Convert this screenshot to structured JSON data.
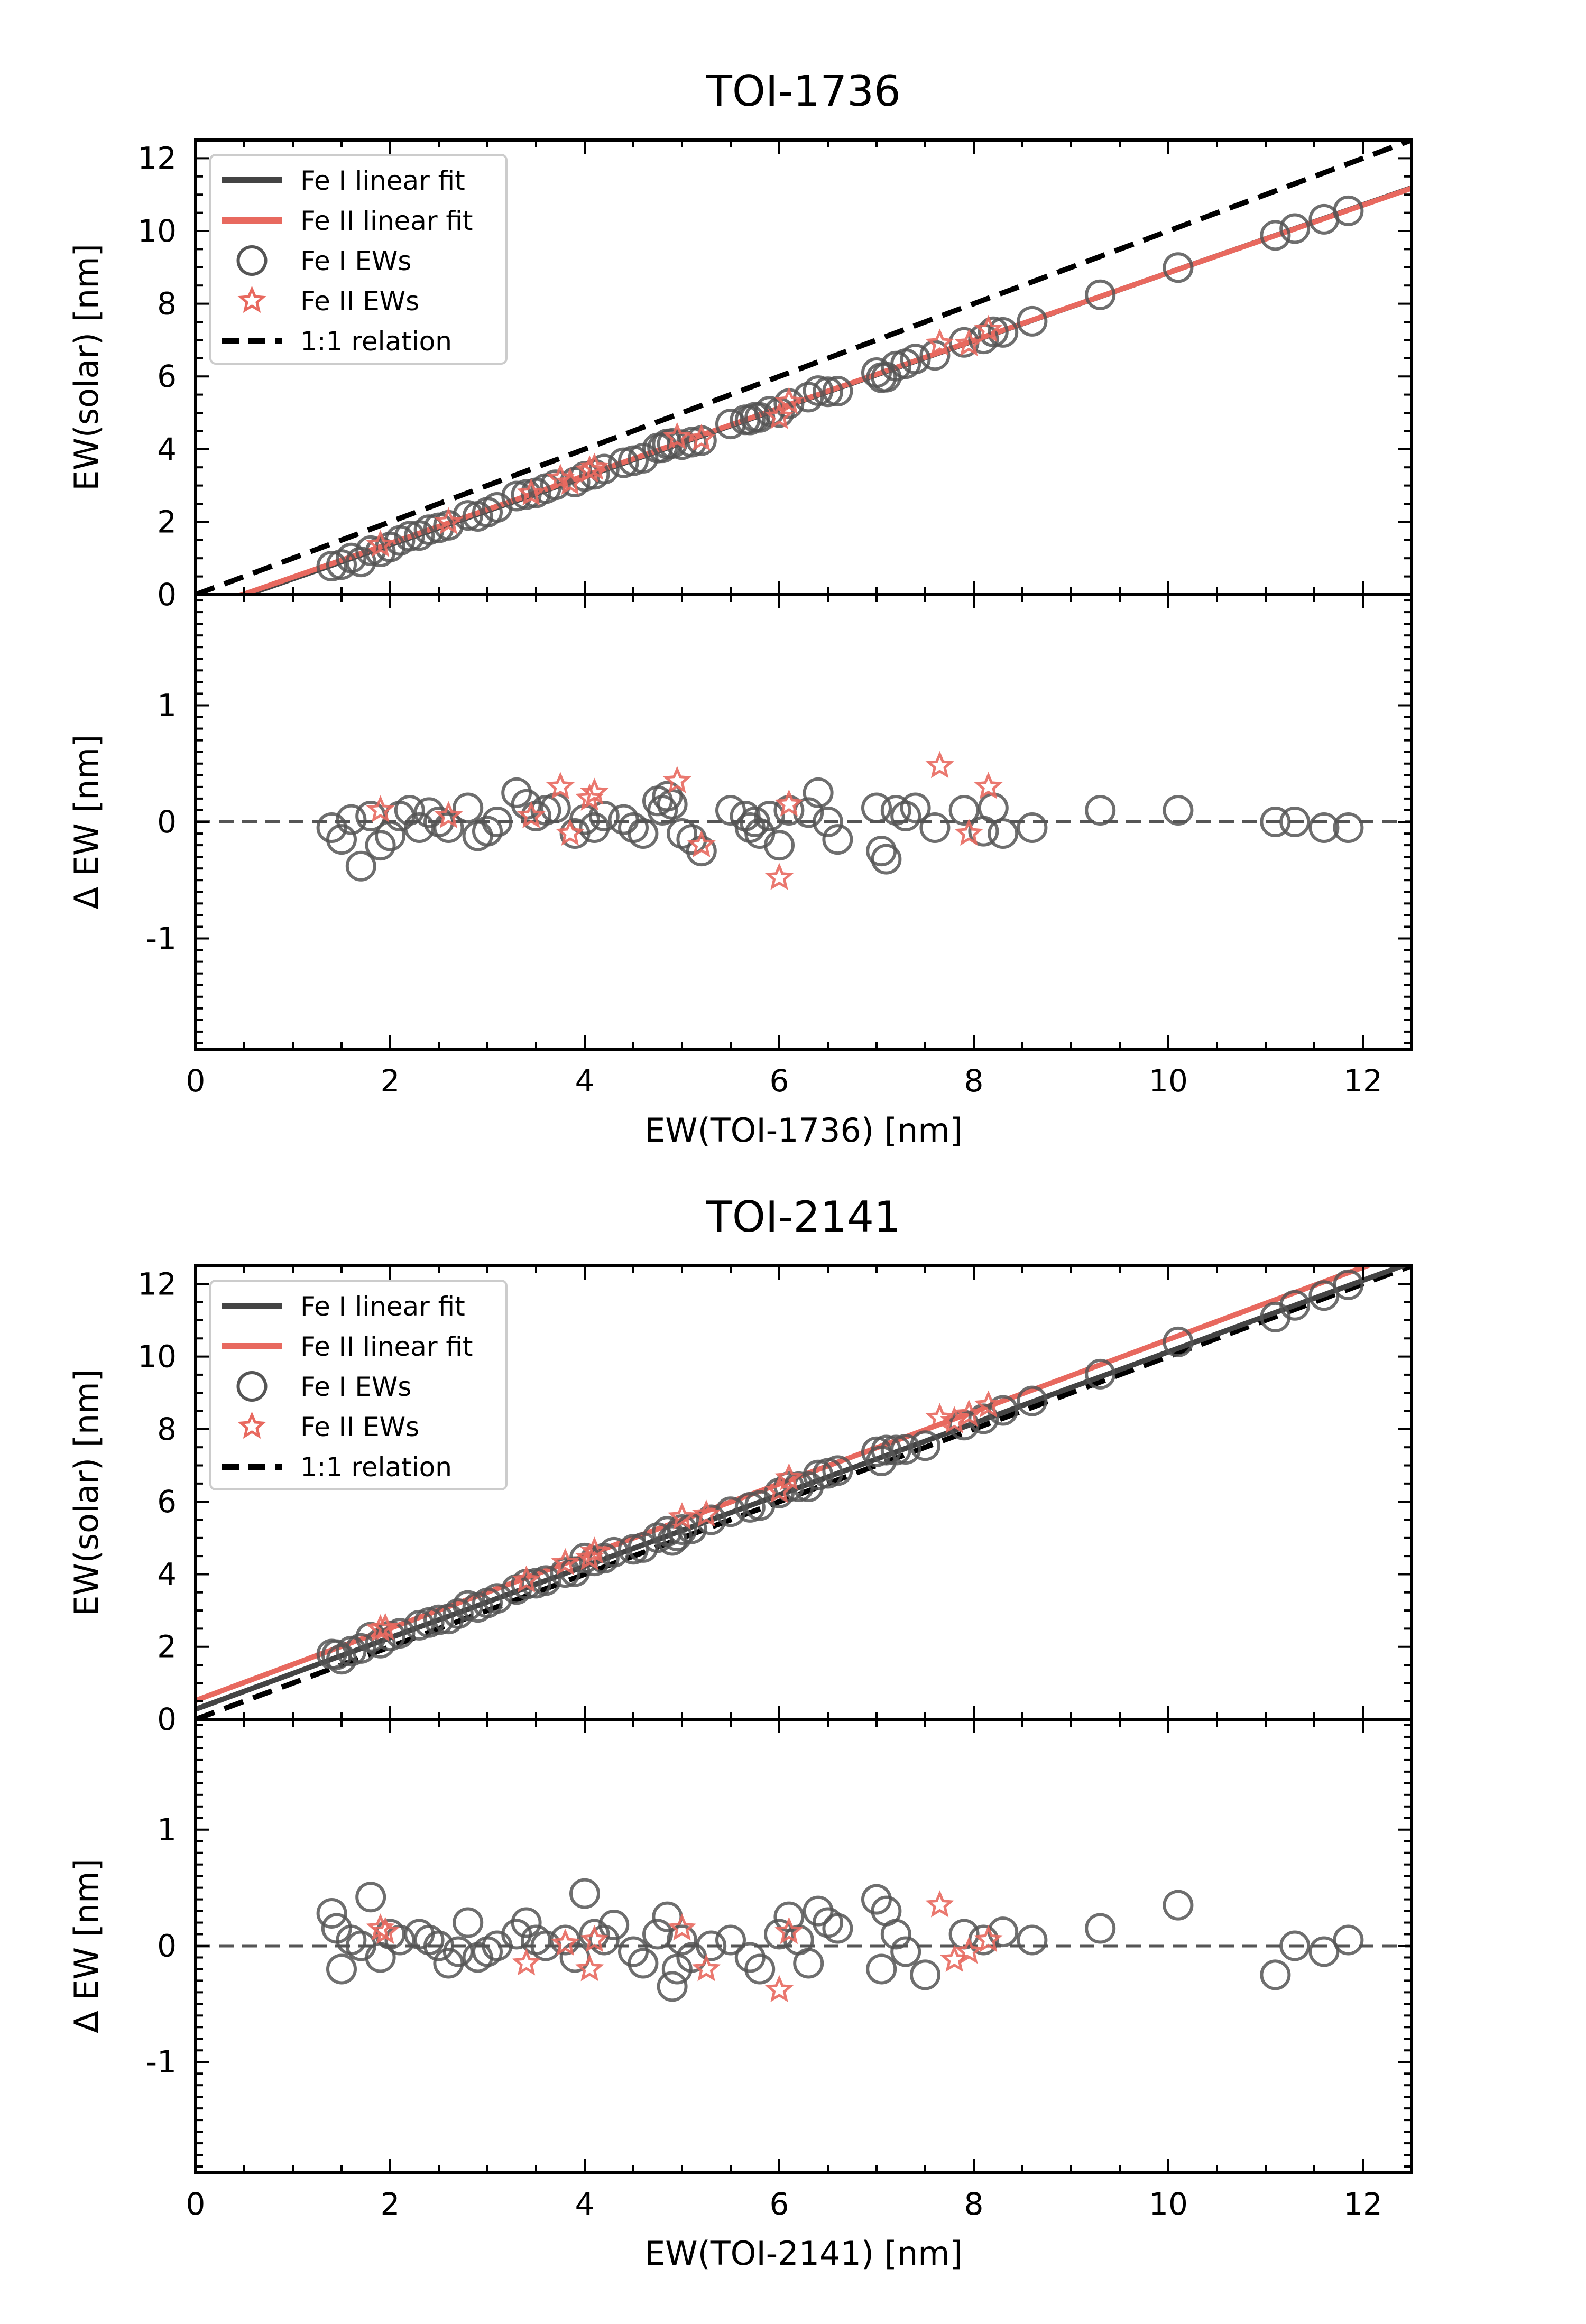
{
  "chart_data": [
    {
      "type": "scatter",
      "title": "TOI-1736",
      "xlabel": "EW(TOI-1736) [nm]",
      "ylabel_top": "EW(solar) [nm]",
      "ylabel_bottom": "Δ EW [nm]",
      "xlim": [
        0,
        12.5
      ],
      "ylim_top": [
        0,
        12.5
      ],
      "ylim_bottom": [
        -1.95,
        1.95
      ],
      "xticks": [
        "0",
        "2",
        "4",
        "6",
        "8",
        "10",
        "12"
      ],
      "yticks_top": [
        "0",
        "2",
        "4",
        "6",
        "8",
        "10",
        "12"
      ],
      "yticks_bottom": [
        "-1",
        "0",
        "1"
      ],
      "legend": {
        "fe1_fit": "Fe I linear fit",
        "fe2_fit": "Fe II linear fit",
        "fe1_pts": "Fe I EWs",
        "fe2_pts": "Fe II EWs",
        "one_to_one": "1:1 relation"
      },
      "legend_position": "upper-left",
      "fe1_fit": {
        "slope": 0.935,
        "intercept": -0.5
      },
      "fe2_fit": {
        "slope": 0.93,
        "intercept": -0.45
      },
      "fe1_x": [
        1.4,
        1.5,
        1.6,
        1.7,
        1.8,
        1.9,
        2.0,
        2.1,
        2.2,
        2.3,
        2.4,
        2.5,
        2.6,
        2.8,
        2.9,
        3.0,
        3.1,
        3.3,
        3.4,
        3.5,
        3.6,
        3.7,
        3.9,
        4.0,
        4.1,
        4.2,
        4.4,
        4.5,
        4.6,
        4.75,
        4.8,
        4.85,
        4.9,
        5.0,
        5.1,
        5.2,
        5.5,
        5.65,
        5.7,
        5.75,
        5.8,
        5.9,
        6.0,
        6.1,
        6.3,
        6.4,
        6.5,
        6.6,
        7.0,
        7.05,
        7.1,
        7.2,
        7.3,
        7.4,
        7.6,
        7.9,
        8.1,
        8.2,
        8.3,
        8.6,
        9.3,
        10.1,
        11.1,
        11.3,
        11.6,
        11.85
      ],
      "fe1_d": [
        -0.05,
        -0.15,
        0.02,
        -0.38,
        0.05,
        -0.2,
        -0.12,
        0.05,
        0.1,
        -0.05,
        0.08,
        0.0,
        -0.05,
        0.12,
        -0.12,
        -0.08,
        0.0,
        0.25,
        0.15,
        0.05,
        0.1,
        0.12,
        -0.1,
        0.02,
        -0.05,
        0.05,
        0.02,
        -0.05,
        -0.1,
        0.18,
        0.1,
        0.22,
        0.15,
        -0.1,
        -0.15,
        -0.25,
        0.1,
        0.05,
        -0.05,
        0.0,
        -0.1,
        0.05,
        -0.2,
        0.1,
        0.08,
        0.25,
        0.0,
        -0.15,
        0.12,
        -0.25,
        -0.32,
        0.1,
        0.05,
        0.12,
        -0.05,
        0.1,
        -0.08,
        0.12,
        -0.1,
        -0.05,
        0.1,
        0.1,
        0.0,
        0.0,
        -0.05,
        -0.05
      ],
      "fe2_x": [
        1.9,
        2.6,
        3.45,
        3.75,
        3.85,
        4.05,
        4.1,
        4.95,
        5.2,
        6.0,
        6.1,
        7.65,
        7.95,
        8.15
      ],
      "fe2_d": [
        0.1,
        0.05,
        0.05,
        0.3,
        -0.1,
        0.2,
        0.25,
        0.35,
        -0.2,
        -0.48,
        0.15,
        0.48,
        -0.1,
        0.3
      ]
    },
    {
      "type": "scatter",
      "title": "TOI-2141",
      "xlabel": "EW(TOI-2141) [nm]",
      "ylabel_top": "EW(solar) [nm]",
      "ylabel_bottom": "Δ EW [nm]",
      "xlim": [
        0,
        12.5
      ],
      "ylim_top": [
        0,
        12.5
      ],
      "ylim_bottom": [
        -1.95,
        1.95
      ],
      "xticks": [
        "0",
        "2",
        "4",
        "6",
        "8",
        "10",
        "12"
      ],
      "yticks_top": [
        "0",
        "2",
        "4",
        "6",
        "8",
        "10",
        "12"
      ],
      "yticks_bottom": [
        "-1",
        "0",
        "1"
      ],
      "legend": {
        "fe1_fit": "Fe I linear fit",
        "fe2_fit": "Fe II linear fit",
        "fe1_pts": "Fe I EWs",
        "fe2_pts": "Fe II EWs",
        "one_to_one": "1:1 relation"
      },
      "legend_position": "upper-left",
      "fe1_fit": {
        "slope": 0.985,
        "intercept": 0.28
      },
      "fe2_fit": {
        "slope": 0.995,
        "intercept": 0.52
      },
      "fe1_x": [
        1.4,
        1.45,
        1.5,
        1.6,
        1.7,
        1.8,
        1.9,
        2.0,
        2.1,
        2.3,
        2.4,
        2.5,
        2.6,
        2.7,
        2.8,
        2.9,
        3.0,
        3.1,
        3.3,
        3.4,
        3.5,
        3.6,
        3.8,
        3.9,
        4.0,
        4.1,
        4.2,
        4.3,
        4.5,
        4.6,
        4.75,
        4.85,
        4.9,
        4.95,
        5.0,
        5.1,
        5.3,
        5.5,
        5.7,
        5.8,
        6.0,
        6.1,
        6.2,
        6.3,
        6.4,
        6.5,
        6.6,
        7.0,
        7.05,
        7.1,
        7.2,
        7.3,
        7.5,
        7.9,
        8.1,
        8.3,
        8.6,
        9.3,
        10.1,
        11.1,
        11.3,
        11.6,
        11.85
      ],
      "fe1_d": [
        0.28,
        0.15,
        -0.2,
        0.05,
        0.0,
        0.42,
        -0.1,
        0.1,
        0.05,
        0.1,
        0.05,
        0.0,
        -0.15,
        -0.05,
        0.2,
        -0.1,
        -0.05,
        0.0,
        0.1,
        0.2,
        0.05,
        0.0,
        0.05,
        -0.1,
        0.45,
        0.1,
        0.05,
        0.18,
        -0.05,
        -0.15,
        0.1,
        0.25,
        -0.35,
        -0.2,
        0.05,
        -0.1,
        0.0,
        0.05,
        -0.1,
        -0.2,
        0.1,
        0.25,
        0.05,
        -0.15,
        0.3,
        0.2,
        0.15,
        0.4,
        -0.2,
        0.3,
        0.1,
        -0.05,
        -0.25,
        0.1,
        0.05,
        0.12,
        0.05,
        0.15,
        0.35,
        -0.25,
        0.0,
        -0.05,
        0.05
      ],
      "fe2_x": [
        1.9,
        1.95,
        3.4,
        3.8,
        4.05,
        4.1,
        5.0,
        5.25,
        6.0,
        6.1,
        7.65,
        7.8,
        7.95,
        8.15
      ],
      "fe2_d": [
        0.15,
        0.12,
        -0.15,
        0.02,
        -0.2,
        0.05,
        0.15,
        -0.2,
        -0.38,
        0.12,
        0.35,
        -0.12,
        -0.05,
        0.05
      ]
    }
  ]
}
